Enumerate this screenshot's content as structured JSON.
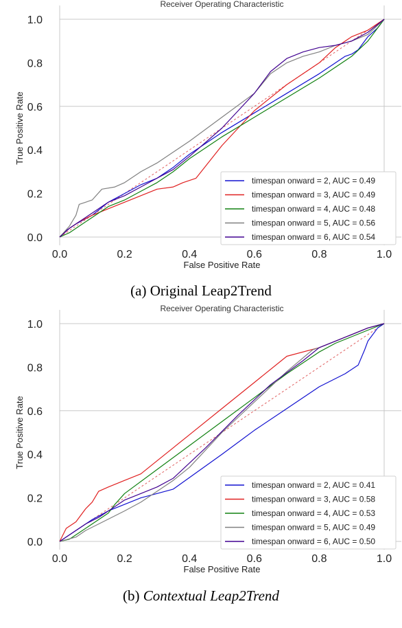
{
  "chart_data": [
    {
      "type": "line",
      "title": "Receiver Operating Characteristic",
      "xlabel": "False Positive Rate",
      "ylabel": "True Positive Rate",
      "xlim": [
        0,
        1
      ],
      "ylim": [
        0,
        1
      ],
      "xticks": [
        "0.0",
        "0.2",
        "0.4",
        "0.6",
        "0.8",
        "1.0"
      ],
      "yticks": [
        "0.0",
        "0.2",
        "0.4",
        "0.6",
        "0.8",
        "1.0"
      ],
      "grid": true,
      "legend_position": "bottom-right",
      "caption_prefix": "(a) ",
      "caption_name": "Original Leap2Trend",
      "caption_italic": false,
      "chance_line": {
        "x": [
          0,
          1
        ],
        "y": [
          0,
          1
        ],
        "color": "#e06060"
      },
      "series": [
        {
          "name": "timespan onward = 2, AUC = 0.49",
          "color": "#1010d0",
          "x": [
            0,
            0.02,
            0.05,
            0.1,
            0.15,
            0.2,
            0.25,
            0.3,
            0.35,
            0.4,
            0.5,
            0.6,
            0.7,
            0.8,
            0.85,
            0.88,
            0.9,
            0.92,
            0.95,
            0.98,
            1.0
          ],
          "y": [
            0,
            0.03,
            0.06,
            0.1,
            0.16,
            0.2,
            0.24,
            0.27,
            0.32,
            0.38,
            0.48,
            0.57,
            0.66,
            0.75,
            0.8,
            0.83,
            0.84,
            0.86,
            0.92,
            0.96,
            1.0
          ]
        },
        {
          "name": "timespan onward = 3, AUC = 0.49",
          "color": "#e02020",
          "x": [
            0,
            0.03,
            0.06,
            0.1,
            0.15,
            0.2,
            0.25,
            0.3,
            0.35,
            0.38,
            0.42,
            0.5,
            0.6,
            0.7,
            0.8,
            0.85,
            0.9,
            0.95,
            1.0
          ],
          "y": [
            0,
            0.04,
            0.07,
            0.1,
            0.13,
            0.16,
            0.19,
            0.22,
            0.23,
            0.25,
            0.27,
            0.42,
            0.58,
            0.7,
            0.8,
            0.87,
            0.92,
            0.95,
            1.0
          ]
        },
        {
          "name": "timespan onward = 4, AUC = 0.48",
          "color": "#108010",
          "x": [
            0,
            0.03,
            0.06,
            0.1,
            0.15,
            0.2,
            0.25,
            0.3,
            0.35,
            0.4,
            0.5,
            0.6,
            0.7,
            0.8,
            0.9,
            0.95,
            1.0
          ],
          "y": [
            0,
            0.02,
            0.05,
            0.09,
            0.14,
            0.17,
            0.21,
            0.25,
            0.3,
            0.36,
            0.46,
            0.55,
            0.64,
            0.73,
            0.83,
            0.9,
            1.0
          ]
        },
        {
          "name": "timespan onward = 5, AUC = 0.56",
          "color": "#808080",
          "x": [
            0,
            0.03,
            0.05,
            0.06,
            0.1,
            0.13,
            0.17,
            0.2,
            0.25,
            0.3,
            0.35,
            0.4,
            0.5,
            0.6,
            0.65,
            0.7,
            0.75,
            0.8,
            0.85,
            0.9,
            0.95,
            1.0
          ],
          "y": [
            0,
            0.05,
            0.1,
            0.15,
            0.17,
            0.22,
            0.23,
            0.25,
            0.3,
            0.34,
            0.39,
            0.44,
            0.55,
            0.66,
            0.75,
            0.8,
            0.83,
            0.85,
            0.88,
            0.9,
            0.93,
            1.0
          ]
        },
        {
          "name": "timespan onward = 6, AUC = 0.54",
          "color": "#400090",
          "x": [
            0,
            0.03,
            0.06,
            0.1,
            0.15,
            0.2,
            0.25,
            0.3,
            0.35,
            0.4,
            0.5,
            0.55,
            0.6,
            0.65,
            0.7,
            0.75,
            0.8,
            0.85,
            0.9,
            0.95,
            1.0
          ],
          "y": [
            0,
            0.04,
            0.07,
            0.11,
            0.16,
            0.19,
            0.23,
            0.27,
            0.31,
            0.37,
            0.5,
            0.58,
            0.66,
            0.76,
            0.82,
            0.85,
            0.87,
            0.88,
            0.9,
            0.94,
            1.0
          ]
        }
      ]
    },
    {
      "type": "line",
      "title": "Receiver Operating Characteristic",
      "xlabel": "False Positive Rate",
      "ylabel": "True Positive Rate",
      "xlim": [
        0,
        1
      ],
      "ylim": [
        0,
        1
      ],
      "xticks": [
        "0.0",
        "0.2",
        "0.4",
        "0.6",
        "0.8",
        "1.0"
      ],
      "yticks": [
        "0.0",
        "0.2",
        "0.4",
        "0.6",
        "0.8",
        "1.0"
      ],
      "grid": true,
      "legend_position": "bottom-right",
      "caption_prefix": "(b) ",
      "caption_name": "Contextual Leap2Trend",
      "caption_italic": true,
      "chance_line": {
        "x": [
          0,
          1
        ],
        "y": [
          0,
          1
        ],
        "color": "#e06060"
      },
      "series": [
        {
          "name": "timespan onward = 2, AUC = 0.41",
          "color": "#1010d0",
          "x": [
            0,
            0.03,
            0.06,
            0.1,
            0.15,
            0.2,
            0.25,
            0.3,
            0.35,
            0.5,
            0.6,
            0.7,
            0.8,
            0.88,
            0.92,
            0.94,
            0.95,
            0.97,
            0.98,
            1.0
          ],
          "y": [
            0,
            0.03,
            0.06,
            0.1,
            0.14,
            0.17,
            0.2,
            0.22,
            0.24,
            0.4,
            0.51,
            0.61,
            0.71,
            0.77,
            0.81,
            0.88,
            0.92,
            0.96,
            0.98,
            1.0
          ]
        },
        {
          "name": "timespan onward = 3, AUC = 0.58",
          "color": "#e02020",
          "x": [
            0,
            0.02,
            0.05,
            0.08,
            0.1,
            0.12,
            0.15,
            0.2,
            0.25,
            0.3,
            0.4,
            0.5,
            0.6,
            0.7,
            0.8,
            0.85,
            0.9,
            0.95,
            1.0
          ],
          "y": [
            0,
            0.06,
            0.09,
            0.15,
            0.18,
            0.23,
            0.25,
            0.28,
            0.31,
            0.37,
            0.49,
            0.61,
            0.73,
            0.85,
            0.89,
            0.92,
            0.95,
            0.98,
            1.0
          ]
        },
        {
          "name": "timespan onward = 4, AUC = 0.53",
          "color": "#108010",
          "x": [
            0,
            0.03,
            0.06,
            0.1,
            0.15,
            0.17,
            0.2,
            0.3,
            0.4,
            0.5,
            0.6,
            0.7,
            0.8,
            0.85,
            0.9,
            0.95,
            1.0
          ],
          "y": [
            0,
            0.01,
            0.04,
            0.08,
            0.13,
            0.17,
            0.22,
            0.33,
            0.44,
            0.55,
            0.66,
            0.77,
            0.87,
            0.91,
            0.94,
            0.97,
            1.0
          ]
        },
        {
          "name": "timespan onward = 5, AUC = 0.49",
          "color": "#808080",
          "x": [
            0,
            0.05,
            0.08,
            0.12,
            0.16,
            0.2,
            0.25,
            0.3,
            0.35,
            0.4,
            0.5,
            0.6,
            0.7,
            0.78,
            0.8,
            0.85,
            0.9,
            0.95,
            1.0
          ],
          "y": [
            0,
            0.02,
            0.05,
            0.08,
            0.11,
            0.14,
            0.18,
            0.23,
            0.28,
            0.34,
            0.5,
            0.64,
            0.78,
            0.88,
            0.89,
            0.92,
            0.95,
            0.98,
            1.0
          ]
        },
        {
          "name": "timespan onward = 6, AUC = 0.50",
          "color": "#400090",
          "x": [
            0,
            0.04,
            0.08,
            0.12,
            0.16,
            0.2,
            0.25,
            0.3,
            0.35,
            0.45,
            0.55,
            0.65,
            0.75,
            0.8,
            0.85,
            0.9,
            0.95,
            1.0
          ],
          "y": [
            0,
            0.04,
            0.08,
            0.11,
            0.15,
            0.19,
            0.22,
            0.25,
            0.29,
            0.43,
            0.58,
            0.72,
            0.83,
            0.89,
            0.92,
            0.95,
            0.98,
            1.0
          ]
        }
      ]
    }
  ]
}
